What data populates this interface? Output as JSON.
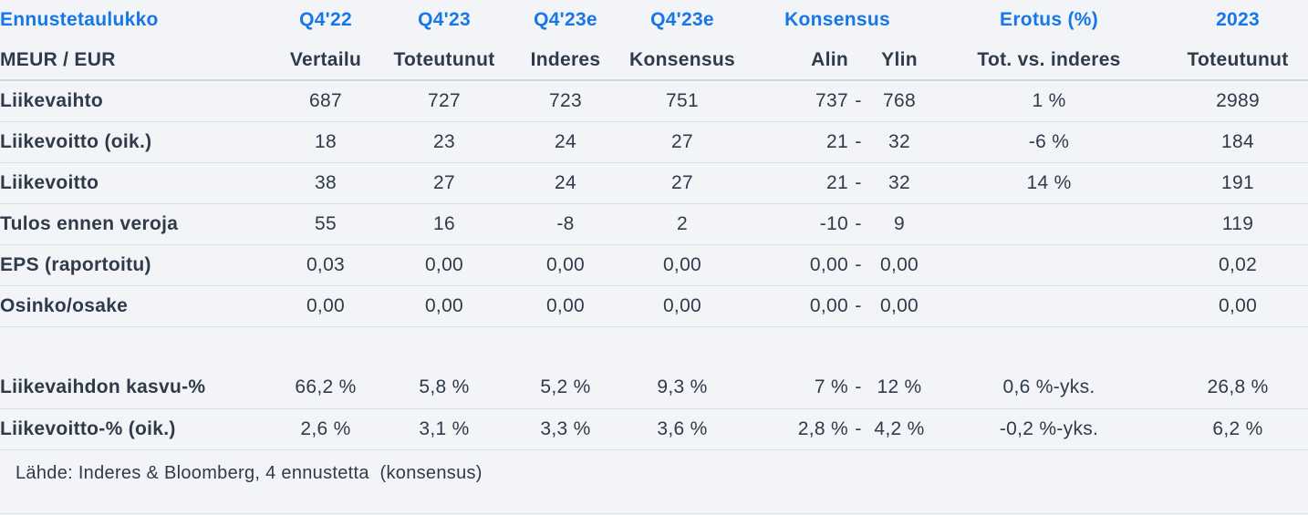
{
  "colors": {
    "accent_blue": "#1577e8",
    "text_dark": "#2f3b4a",
    "separator": "#d9dce1",
    "background": "#f2f4f7"
  },
  "table": {
    "header1": {
      "title": "Ennustetaulukko",
      "cols": [
        "Q4'22",
        "Q4'23",
        "Q4'23e",
        "Q4'23e",
        "Konsensus",
        "Erotus (%)",
        "2023"
      ]
    },
    "header2": {
      "title": "MEUR / EUR",
      "cols": [
        "Vertailu",
        "Toteutunut",
        "Inderes",
        "Konsensus",
        "Alin",
        "Ylin",
        "Tot. vs. inderes",
        "Toteutunut"
      ]
    },
    "column_keys": [
      "label",
      "vertailu",
      "toteutunut",
      "inderes",
      "konsensus",
      "alin",
      "dash",
      "ylin",
      "erotus",
      "y2023"
    ],
    "rows": [
      {
        "cells": [
          "Liikevaihto",
          "687",
          "727",
          "723",
          "751",
          "737",
          "-",
          "768",
          "1 %",
          "2989"
        ]
      },
      {
        "cells": [
          "Liikevoitto (oik.)",
          "18",
          "23",
          "24",
          "27",
          "21",
          "-",
          "32",
          "-6 %",
          "184"
        ]
      },
      {
        "cells": [
          "Liikevoitto",
          "38",
          "27",
          "24",
          "27",
          "21",
          "-",
          "32",
          "14 %",
          "191"
        ]
      },
      {
        "cells": [
          "Tulos ennen veroja",
          "55",
          "16",
          "-8",
          "2",
          "-10",
          "-",
          "9",
          "",
          "119"
        ]
      },
      {
        "cells": [
          "EPS (raportoitu)",
          "0,03",
          "0,00",
          "0,00",
          "0,00",
          "0,00",
          "-",
          "0,00",
          "",
          "0,02"
        ]
      },
      {
        "cells": [
          "Osinko/osake",
          "0,00",
          "0,00",
          "0,00",
          "0,00",
          "0,00",
          "-",
          "0,00",
          "",
          "0,00"
        ]
      },
      {
        "spacer": true
      },
      {
        "cells": [
          "Liikevaihdon kasvu-%",
          "66,2 %",
          "5,8 %",
          "5,2 %",
          "9,3 %",
          "7 %",
          "-",
          "12 %",
          "0,6 %-yks.",
          "26,8 %"
        ]
      },
      {
        "cells": [
          "Liikevoitto-% (oik.)",
          "2,6 %",
          "3,1 %",
          "3,3 %",
          "3,6 %",
          "2,8 %",
          "-",
          "4,2 %",
          "-0,2 %-yks.",
          "6,2 %"
        ]
      }
    ]
  },
  "footer": {
    "source": "Lähde: Inderes & Bloomberg, 4 ennustetta  (konsensus)"
  },
  "chart_data": {
    "type": "table",
    "title": "Ennustetaulukko",
    "unit": "MEUR / EUR",
    "columns": [
      "Q4'22 Vertailu",
      "Q4'23 Toteutunut",
      "Q4'23e Inderes",
      "Q4'23e Konsensus",
      "Konsensus Alin",
      "Konsensus Ylin",
      "Erotus (%) Tot. vs. inderes",
      "2023 Toteutunut"
    ],
    "rows": [
      {
        "label": "Liikevaihto",
        "values": [
          "687",
          "727",
          "723",
          "751",
          "737",
          "768",
          "1 %",
          "2989"
        ]
      },
      {
        "label": "Liikevoitto (oik.)",
        "values": [
          "18",
          "23",
          "24",
          "27",
          "21",
          "32",
          "-6 %",
          "184"
        ]
      },
      {
        "label": "Liikevoitto",
        "values": [
          "38",
          "27",
          "24",
          "27",
          "21",
          "32",
          "14 %",
          "191"
        ]
      },
      {
        "label": "Tulos ennen veroja",
        "values": [
          "55",
          "16",
          "-8",
          "2",
          "-10",
          "9",
          "",
          "119"
        ]
      },
      {
        "label": "EPS (raportoitu)",
        "values": [
          "0,03",
          "0,00",
          "0,00",
          "0,00",
          "0,00",
          "0,00",
          "",
          "0,02"
        ]
      },
      {
        "label": "Osinko/osake",
        "values": [
          "0,00",
          "0,00",
          "0,00",
          "0,00",
          "0,00",
          "0,00",
          "",
          "0,00"
        ]
      },
      {
        "label": "Liikevaihdon kasvu-%",
        "values": [
          "66,2 %",
          "5,8 %",
          "5,2 %",
          "9,3 %",
          "7 %",
          "12 %",
          "0,6 %-yks.",
          "26,8 %"
        ]
      },
      {
        "label": "Liikevoitto-% (oik.)",
        "values": [
          "2,6 %",
          "3,1 %",
          "3,3 %",
          "3,6 %",
          "2,8 %",
          "4,2 %",
          "-0,2 %-yks.",
          "6,2 %"
        ]
      }
    ],
    "source_note": "Lähde: Inderes & Bloomberg, 4 ennustetta (konsensus)"
  }
}
